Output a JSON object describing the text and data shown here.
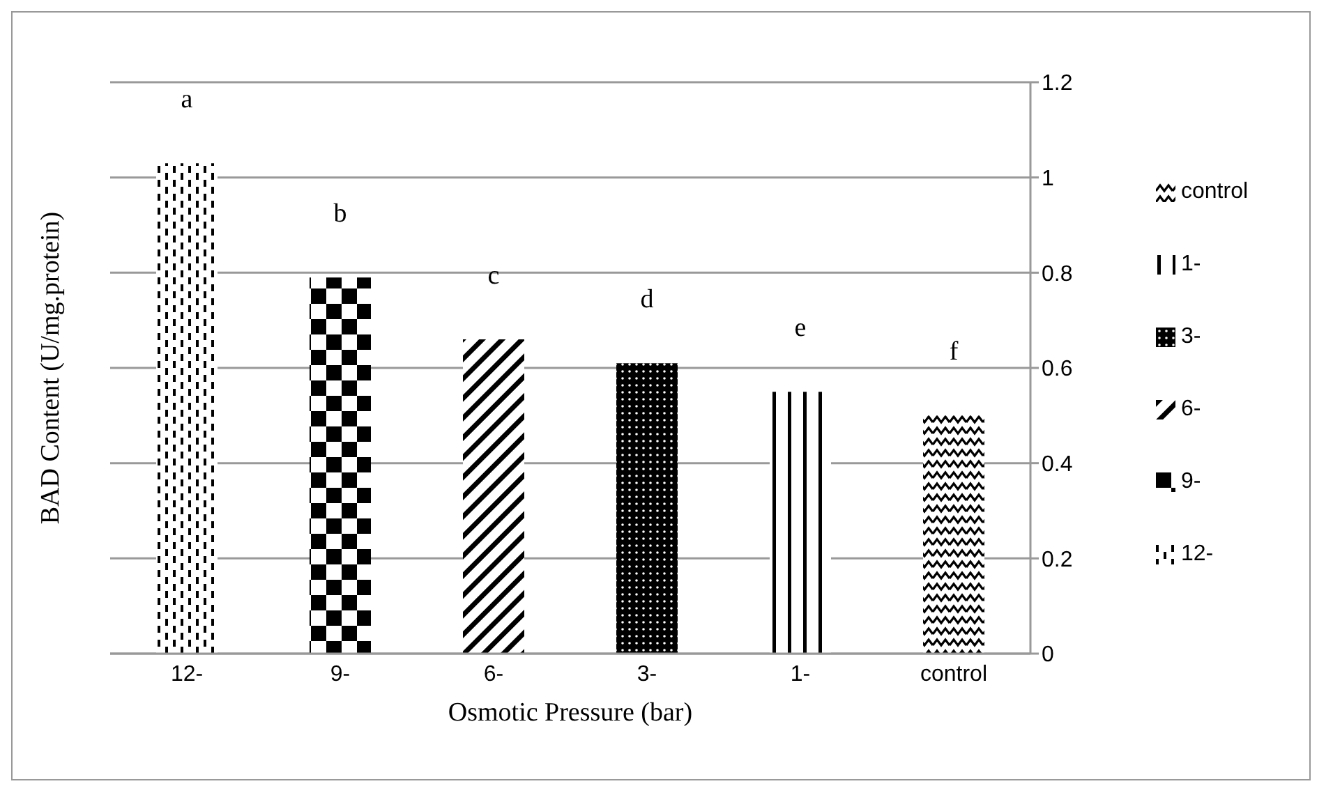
{
  "chart_data": {
    "type": "bar",
    "xlabel": "Osmotic Pressure (bar)",
    "ylabel": "BAD Content (U/mg.protein)",
    "categories": [
      "12-",
      "9-",
      "6-",
      "3-",
      "1-",
      "control"
    ],
    "stacked": true,
    "series": [
      {
        "name": "control",
        "color": "#000000",
        "values": [
          null,
          null,
          null,
          null,
          null,
          0.5
        ]
      },
      {
        "name": "1-",
        "color": "#000000",
        "values": [
          null,
          null,
          null,
          null,
          0.55,
          null
        ]
      },
      {
        "name": "3-",
        "color": "#000000",
        "values": [
          null,
          null,
          null,
          0.61,
          null,
          null
        ]
      },
      {
        "name": "6-",
        "color": "#000000",
        "values": [
          null,
          null,
          0.66,
          null,
          null,
          null
        ]
      },
      {
        "name": "9-",
        "color": "#000000",
        "values": [
          null,
          0.79,
          null,
          null,
          null,
          null
        ]
      },
      {
        "name": "12-",
        "color": "#000000",
        "values": [
          1.03,
          null,
          null,
          null,
          null,
          null
        ]
      }
    ],
    "ylim": [
      0,
      1.2
    ],
    "yticks": [
      0,
      0.2,
      0.4,
      0.6,
      0.8,
      1,
      1.2
    ],
    "grid": "y",
    "legend": "right",
    "annotations": [
      "a",
      "b",
      "c",
      "d",
      "e",
      "f"
    ]
  }
}
